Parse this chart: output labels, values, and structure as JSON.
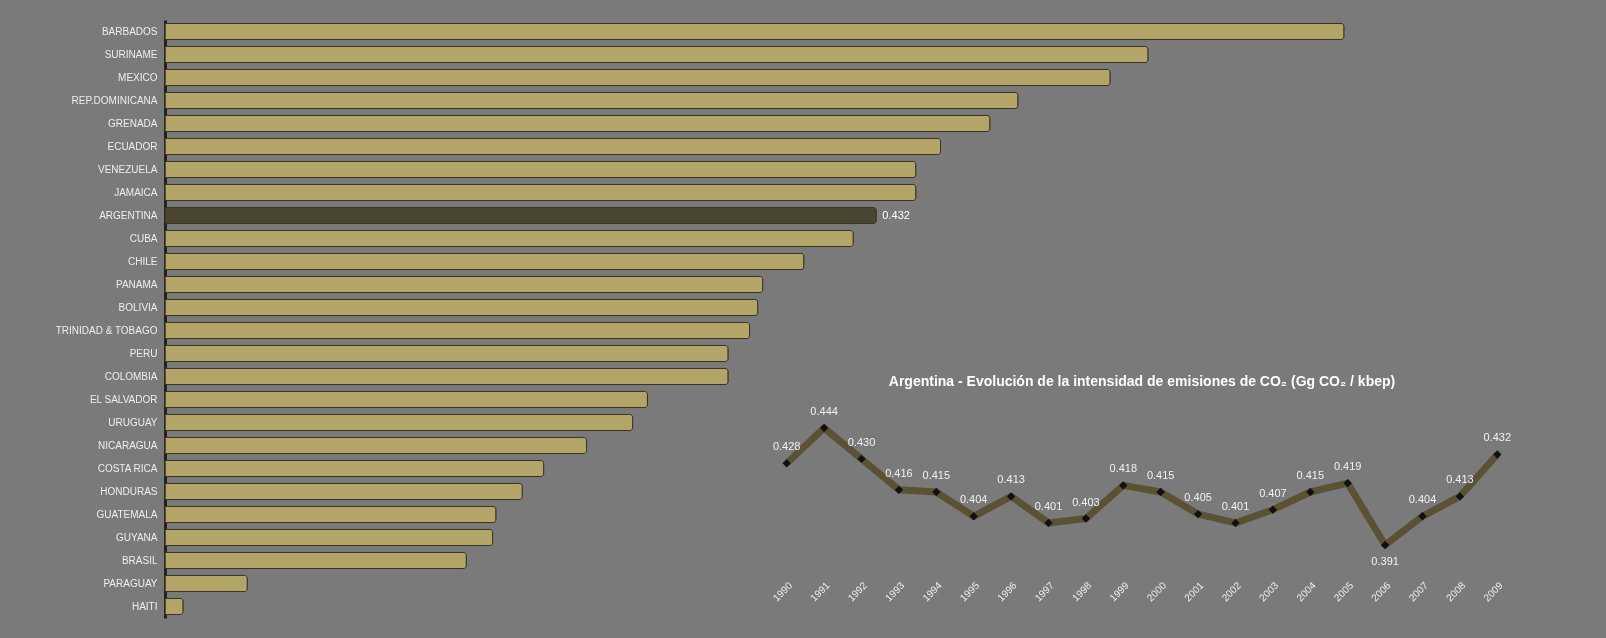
{
  "chart_data": [
    {
      "type": "bar",
      "orientation": "horizontal",
      "categories": [
        "BARBADOS",
        "SURINAME",
        "MEXICO",
        "REP.DOMINICANA",
        "GRENADA",
        "ECUADOR",
        "VENEZUELA",
        "JAMAICA",
        "ARGENTINA",
        "CUBA",
        "CHILE",
        "PANAMA",
        "BOLIVIA",
        "TRINIDAD & TOBAGO",
        "PERU",
        "COLOMBIA",
        "EL SALVADOR",
        "URUGUAY",
        "NICARAGUA",
        "COSTA RICA",
        "HONDURAS",
        "GUATEMALA",
        "GUYANA",
        "BRASIL",
        "PARAGUAY",
        "HAITI"
      ],
      "values": [
        0.716,
        0.597,
        0.574,
        0.518,
        0.501,
        0.471,
        0.456,
        0.456,
        0.432,
        0.418,
        0.388,
        0.363,
        0.36,
        0.355,
        0.342,
        0.342,
        0.293,
        0.284,
        0.256,
        0.23,
        0.217,
        0.201,
        0.199,
        0.183,
        0.05,
        0.011
      ],
      "colors": [
        "#b3a468",
        "#b3a468",
        "#b3a468",
        "#b3a468",
        "#b3a468",
        "#b3a468",
        "#b3a468",
        "#b3a468",
        "#4a4430",
        "#b3a468",
        "#b3a468",
        "#b3a468",
        "#b3a468",
        "#b3a468",
        "#b3a468",
        "#b3a468",
        "#b3a468",
        "#b3a468",
        "#b3a468",
        "#b3a468",
        "#b3a468",
        "#b3a468",
        "#b3a468",
        "#b3a468",
        "#b3a468",
        "#b3a468"
      ],
      "value_labels": [
        null,
        null,
        null,
        null,
        null,
        null,
        null,
        null,
        "0.432",
        null,
        null,
        null,
        null,
        null,
        null,
        null,
        null,
        null,
        null,
        null,
        null,
        null,
        null,
        null,
        null,
        null
      ]
    },
    {
      "type": "line",
      "title": "Argentina - Evolución de la intensidad de emisiones de CO₂ (Gg CO₂ / kbep)",
      "categories": [
        "1990",
        "1991",
        "1992",
        "1993",
        "1994",
        "1995",
        "1996",
        "1997",
        "1998",
        "1999",
        "2000",
        "2001",
        "2002",
        "2003",
        "2004",
        "2005",
        "2006",
        "2007",
        "2008",
        "2009"
      ],
      "series": [
        {
          "color": "#5b5234",
          "values": [
            0.428,
            0.444,
            0.43,
            0.416,
            0.415,
            0.404,
            0.413,
            0.401,
            0.403,
            0.418,
            0.415,
            0.405,
            0.401,
            0.407,
            0.415,
            0.419,
            0.391,
            0.404,
            0.413,
            0.432
          ],
          "value_labels": [
            "0.428",
            "0.444",
            "0.430",
            "0.416",
            "0.415",
            "0.404",
            "0.413",
            "0.401",
            "0.403",
            "0.418",
            "0.415",
            "0.405",
            "0.401",
            "0.407",
            "0.415",
            "0.419",
            "0.391",
            "0.404",
            "0.413",
            "0.432"
          ]
        }
      ],
      "marker": "diamond",
      "line_style": "solid"
    }
  ]
}
